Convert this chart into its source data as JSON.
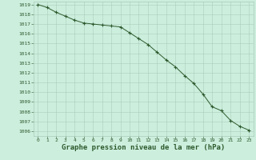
{
  "x": [
    0,
    1,
    2,
    3,
    4,
    5,
    6,
    7,
    8,
    9,
    10,
    11,
    12,
    13,
    14,
    15,
    16,
    17,
    18,
    19,
    20,
    21,
    22,
    23
  ],
  "y": [
    1019.0,
    1018.7,
    1018.2,
    1017.8,
    1017.4,
    1017.1,
    1017.0,
    1016.9,
    1016.8,
    1016.7,
    1016.1,
    1015.5,
    1014.9,
    1014.1,
    1013.3,
    1012.6,
    1011.7,
    1010.9,
    1009.8,
    1008.5,
    1008.1,
    1007.1,
    1006.5,
    1006.1
  ],
  "line_color": "#2d5a2d",
  "marker": "+",
  "marker_size": 3,
  "background_color": "#cceedd",
  "grid_color": "#aaccbb",
  "xlabel": "Graphe pression niveau de la mer (hPa)",
  "xlim": [
    -0.5,
    23.5
  ],
  "ylim_min": 1006,
  "ylim_max": 1019,
  "yticks": [
    1006,
    1007,
    1008,
    1009,
    1010,
    1011,
    1012,
    1013,
    1014,
    1015,
    1016,
    1017,
    1018,
    1019
  ],
  "xticks": [
    0,
    1,
    2,
    3,
    4,
    5,
    6,
    7,
    8,
    9,
    10,
    11,
    12,
    13,
    14,
    15,
    16,
    17,
    18,
    19,
    20,
    21,
    22,
    23
  ],
  "tick_fontsize": 4.5,
  "xlabel_fontsize": 6.5
}
